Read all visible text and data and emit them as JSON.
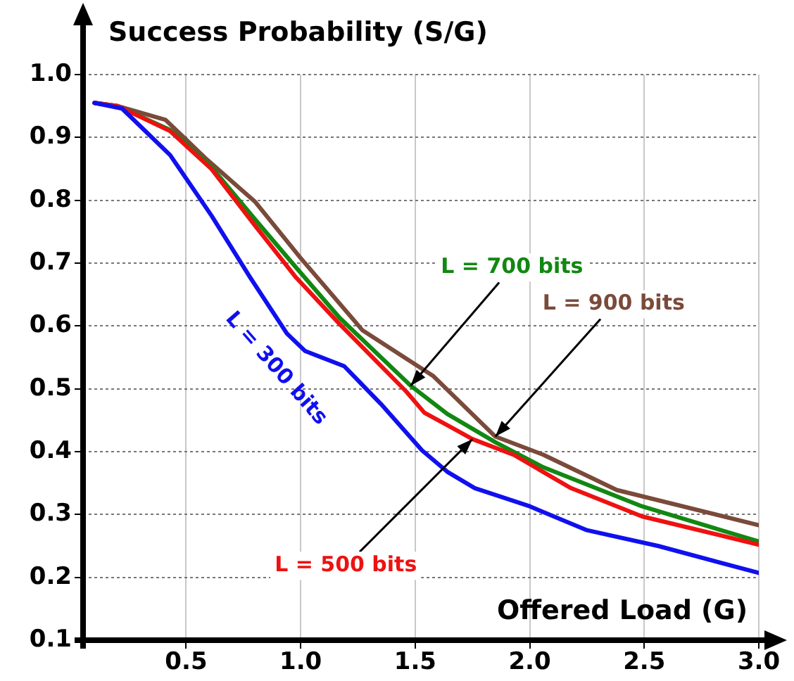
{
  "chart_data": {
    "type": "line",
    "xlabel": "Offered Load (G)",
    "ylabel": "Success Probability (S/G)",
    "xlim": [
      0.05,
      3.0
    ],
    "ylim": [
      0.1,
      1.0
    ],
    "xticks": [
      0.5,
      {
        "value": 1,
        "label": "1.0"
      },
      1.5,
      {
        "value": 2,
        "label": "2.0"
      },
      2.5,
      {
        "value": 3,
        "label": "3.0"
      }
    ],
    "yticks": [
      0.1,
      0.2,
      0.3,
      0.4,
      0.5,
      0.6,
      0.7,
      0.8,
      0.9,
      {
        "value": 1,
        "label": "1.0"
      }
    ],
    "grid": true,
    "marker": "none",
    "line_style": "solid",
    "series": [
      {
        "color": "#1010ee",
        "x": [
          0.1,
          0.22,
          0.43,
          0.61,
          0.78,
          0.94,
          1.02,
          1.19,
          1.35,
          1.53,
          1.64,
          1.76,
          2.0,
          2.25,
          2.56,
          3.0
        ],
        "values": [
          0.955,
          0.946,
          0.872,
          0.776,
          0.677,
          0.588,
          0.56,
          0.536,
          0.476,
          0.402,
          0.368,
          0.342,
          0.313,
          0.275,
          0.25,
          0.207
        ]
      },
      {
        "color": "#ee1111",
        "x": [
          0.1,
          0.2,
          0.43,
          0.61,
          0.8,
          0.98,
          1.17,
          1.46,
          1.54,
          1.64,
          1.75,
          1.93,
          2.18,
          2.49,
          3.0
        ],
        "values": [
          0.955,
          0.95,
          0.91,
          0.85,
          0.76,
          0.677,
          0.603,
          0.496,
          0.462,
          0.442,
          0.42,
          0.395,
          0.342,
          0.297,
          0.252
        ]
      },
      {
        "color": "#118811",
        "x": [
          0.1,
          0.2,
          0.43,
          0.61,
          0.8,
          0.98,
          1.17,
          1.48,
          1.64,
          1.85,
          2.06,
          2.49,
          3.0
        ],
        "values": [
          0.955,
          0.95,
          0.912,
          0.853,
          0.77,
          0.693,
          0.613,
          0.505,
          0.46,
          0.415,
          0.375,
          0.313,
          0.257
        ]
      },
      {
        "color": "#7a4a3a",
        "x": [
          0.1,
          0.2,
          0.41,
          0.59,
          0.8,
          1.0,
          1.27,
          1.58,
          1.85,
          2.06,
          2.38,
          3.0
        ],
        "values": [
          0.955,
          0.95,
          0.928,
          0.865,
          0.798,
          0.708,
          0.593,
          0.52,
          0.424,
          0.395,
          0.339,
          0.283
        ]
      }
    ],
    "annotations": [
      "L = 300 bits",
      {
        "text": "L = 500 bits",
        "x": 1.75,
        "y": 0.42
      },
      {
        "text": "L = 700 bits",
        "x": 1.48,
        "y": 0.505
      },
      {
        "text": "L = 900 bits",
        "x": 1.85,
        "y": 0.424
      }
    ]
  }
}
